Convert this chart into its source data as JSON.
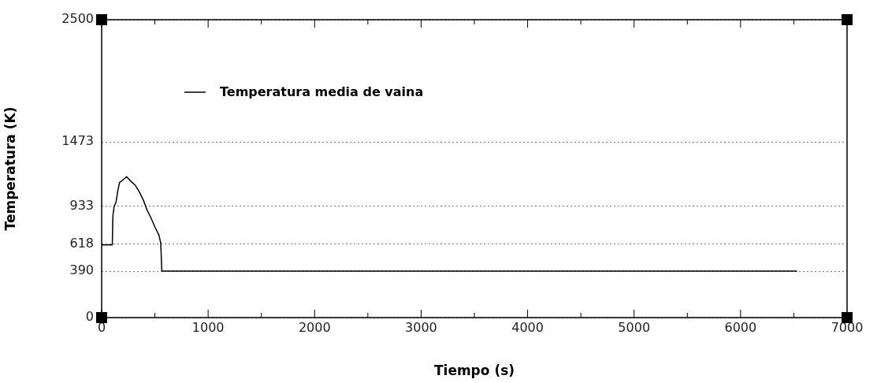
{
  "chart_data": {
    "type": "line",
    "xlabel": "Tiempo (s)",
    "ylabel": "Temperatura (K)",
    "xlim": [
      0,
      7000
    ],
    "xticks": [
      0,
      1000,
      2000,
      3000,
      4000,
      5000,
      6000,
      7000
    ],
    "ylim": [
      0,
      2500
    ],
    "yticks": [
      0,
      390,
      618,
      933,
      1473,
      2500
    ],
    "grid": "y",
    "legend": "top left",
    "marker": "none",
    "line_style": "solid",
    "series": [
      {
        "name": "Temperatura media de vaina",
        "color": "#000000",
        "x": [
          0,
          100,
          106,
          118,
          135,
          150,
          168,
          192,
          234,
          279,
          316,
          353,
          390,
          427,
          464,
          501,
          538,
          555,
          565,
          6530
        ],
        "values": [
          610,
          610,
          858,
          935,
          968,
          1056,
          1133,
          1149,
          1182,
          1140,
          1111,
          1056,
          990,
          902,
          835,
          759,
          692,
          626,
          390,
          390
        ]
      }
    ]
  }
}
